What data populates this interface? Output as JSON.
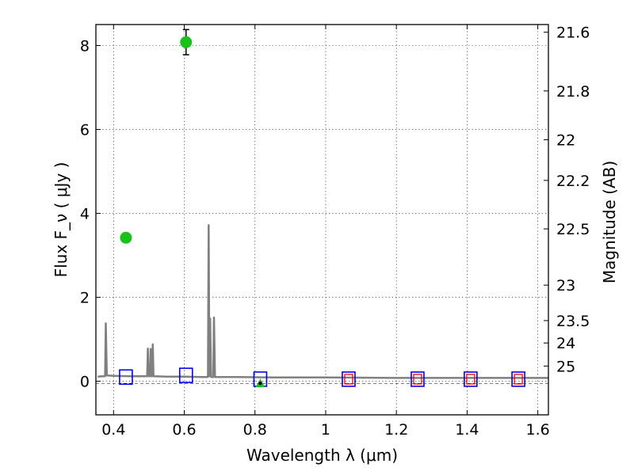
{
  "chart_data": {
    "type": "scatter",
    "xlabel": "Wavelength  λ (μm)",
    "ylabel": "Flux  F_ν  ( μJy )",
    "ylabel_right": "Magnitude (AB)",
    "xlim": [
      0.35,
      1.63
    ],
    "ylim": [
      -0.8,
      8.5
    ],
    "grid": true,
    "x_ticks": [
      0.4,
      0.6,
      0.8,
      1.0,
      1.2,
      1.4,
      1.6
    ],
    "x_tick_labels": [
      "0.4",
      "0.6",
      "0.8",
      "1",
      "1.2",
      "1.4",
      "1.6"
    ],
    "y_ticks": [
      0,
      2,
      4,
      6,
      8
    ],
    "y_tick_labels": [
      "0",
      "2",
      "4",
      "6",
      "8"
    ],
    "right_ticks": [
      21.6,
      21.8,
      22,
      22.2,
      22.5,
      23,
      23.5,
      24,
      25
    ],
    "right_tick_labels": [
      "21.6",
      "21.8",
      "22",
      "22.2",
      "22.5",
      "23",
      "23.5",
      "24",
      "25"
    ],
    "observed": [
      {
        "x": 0.435,
        "y": 3.42,
        "err": 0.1
      },
      {
        "x": 0.605,
        "y": 8.08,
        "err": 0.3
      }
    ],
    "upper_limit": {
      "x": 0.815,
      "y": -0.05
    },
    "model_photometry": [
      {
        "x": 0.435,
        "y": 0.1
      },
      {
        "x": 0.605,
        "y": 0.14
      },
      {
        "x": 0.815,
        "y": 0.05
      },
      {
        "x": 1.065,
        "y": 0.05
      },
      {
        "x": 1.26,
        "y": 0.05
      },
      {
        "x": 1.41,
        "y": 0.05
      },
      {
        "x": 1.545,
        "y": 0.05
      }
    ],
    "nir_red_boxes_x": [
      1.065,
      1.26,
      1.41,
      1.545
    ],
    "spectrum": [
      [
        0.355,
        0.11
      ],
      [
        0.37,
        0.12
      ],
      [
        0.376,
        0.12
      ],
      [
        0.378,
        1.38
      ],
      [
        0.381,
        0.14
      ],
      [
        0.4,
        0.13
      ],
      [
        0.45,
        0.12
      ],
      [
        0.495,
        0.12
      ],
      [
        0.497,
        0.78
      ],
      [
        0.499,
        0.12
      ],
      [
        0.503,
        0.12
      ],
      [
        0.505,
        0.77
      ],
      [
        0.507,
        0.12
      ],
      [
        0.509,
        0.12
      ],
      [
        0.511,
        0.88
      ],
      [
        0.513,
        0.12
      ],
      [
        0.55,
        0.11
      ],
      [
        0.6,
        0.11
      ],
      [
        0.65,
        0.1
      ],
      [
        0.667,
        0.1
      ],
      [
        0.669,
        3.72
      ],
      [
        0.671,
        0.12
      ],
      [
        0.673,
        1.5
      ],
      [
        0.676,
        0.1
      ],
      [
        0.682,
        0.1
      ],
      [
        0.684,
        1.52
      ],
      [
        0.687,
        0.1
      ],
      [
        0.75,
        0.1
      ],
      [
        0.85,
        0.09
      ],
      [
        1.0,
        0.09
      ],
      [
        1.2,
        0.08
      ],
      [
        1.4,
        0.08
      ],
      [
        1.63,
        0.08
      ]
    ],
    "colors": {
      "observed": "#18c318",
      "model_box": "#0000ff",
      "model_box_nir": "#ff0000",
      "spectrum": "#808080"
    }
  }
}
